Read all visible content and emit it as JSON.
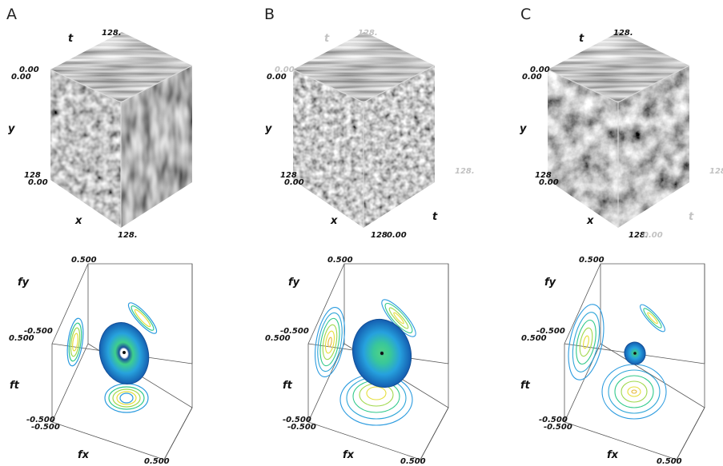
{
  "panels": [
    {
      "label": "A",
      "cube": {
        "t_label": "t",
        "y_label": "y",
        "x_label": "x",
        "tick_top": "128.",
        "tick_left_a": "0.00",
        "tick_left_b": "0.00",
        "tick_y_bottom": "128",
        "tick_x_origin": "0.00",
        "tick_x_end": "128."
      },
      "spectrum": {
        "fy_label": "fy",
        "ft_label": "ft",
        "fx_label": "fx",
        "tick_top": "0.500",
        "tick_mid_a": "-0.500",
        "tick_mid_b": "0.500",
        "tick_bot_a": "-0.500",
        "tick_bot_b": "-0.500",
        "tick_end": "0.500"
      }
    },
    {
      "label": "B",
      "cube": {
        "t_label": "t",
        "y_label": "y",
        "x_label": "x",
        "tick_top": "128.",
        "tick_left_a": "0.00",
        "tick_left_b": "0.00",
        "tick_y_bottom": "128",
        "tick_x_origin": "0.00",
        "tick_x_end": "128",
        "t_right_label": "t",
        "tick_right": "128.",
        "tick_right_origin": "0.00"
      },
      "spectrum": {
        "fy_label": "fy",
        "ft_label": "ft",
        "fx_label": "fx",
        "tick_top": "0.500",
        "tick_mid_a": "-0.500",
        "tick_mid_b": "0.500",
        "tick_bot_a": "-0.500",
        "tick_bot_b": "-0.500",
        "tick_end": "0.500"
      }
    },
    {
      "label": "C",
      "cube": {
        "t_label": "t",
        "y_label": "y",
        "x_label": "x",
        "tick_top": "128.",
        "tick_left_a": "0.00",
        "tick_left_b": "0.00",
        "tick_y_bottom": "128",
        "tick_x_origin": "0.00",
        "tick_x_end": "128.",
        "t_right_label": "t",
        "tick_right": "128",
        "tick_right_origin": "0.00"
      },
      "spectrum": {
        "fy_label": "fy",
        "ft_label": "ft",
        "fx_label": "fx",
        "tick_top": "0.500",
        "tick_mid_a": "-0.500",
        "tick_mid_b": "0.500",
        "tick_bot_a": "-0.500",
        "tick_bot_b": "-0.500",
        "tick_end": "0.500"
      }
    }
  ],
  "colors": {
    "outer_contour": "#2b9bdf",
    "mid_contour": "#2fc98a",
    "inner_contour": "#d8e23a",
    "blob_dark": "#1565b0",
    "blob_mid": "#29a0e0",
    "blob_center": "#3fc870"
  }
}
